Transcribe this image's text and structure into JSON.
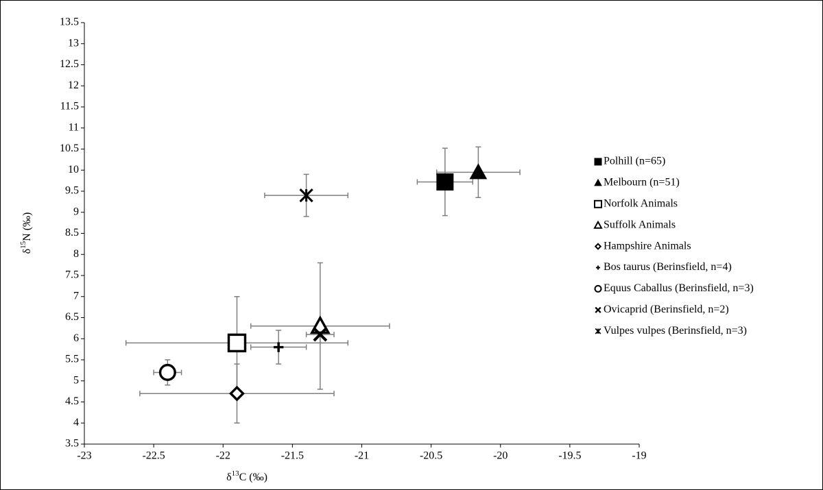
{
  "chart_data": {
    "type": "scatter",
    "xlabel": [
      "δ",
      "13",
      "C (‰)"
    ],
    "ylabel": [
      "δ",
      "15",
      "N (‰)"
    ],
    "xlim": [
      -23,
      -19
    ],
    "xticks": [
      -23,
      -22.5,
      -22,
      -21.5,
      -21,
      -20.5,
      -20,
      -19.5,
      -19
    ],
    "ylim": [
      3.5,
      13.5
    ],
    "yticks": [
      3.5,
      4,
      4.5,
      5,
      5.5,
      6,
      6.5,
      7,
      7.5,
      8,
      8.5,
      9,
      9.5,
      10,
      10.5,
      11,
      11.5,
      12,
      12.5,
      13,
      13.5
    ],
    "grid": false,
    "legend": "right",
    "errorbar_color": "#7f7f7f",
    "series": [
      {
        "name": "Polhill (n=65)",
        "marker": "square-filled",
        "color": "#000000",
        "x": [
          -20.4
        ],
        "values": [
          9.72
        ],
        "xerr": [
          0.2
        ],
        "yerr": [
          0.8
        ]
      },
      {
        "name": "Melbourn (n=51)",
        "marker": "triangle-filled",
        "color": "#000000",
        "x": [
          -20.16
        ],
        "values": [
          9.95
        ],
        "xerr": [
          0.3
        ],
        "yerr": [
          0.6
        ]
      },
      {
        "name": "Norfolk Animals",
        "marker": "square-open",
        "color": "#000000",
        "x": [
          -21.9
        ],
        "values": [
          5.9
        ],
        "xerr": [
          0.8
        ],
        "yerr": [
          1.1
        ]
      },
      {
        "name": "Suffolk Animals",
        "marker": "triangle-open",
        "color": "#000000",
        "x": [
          -21.3
        ],
        "values": [
          6.3
        ],
        "xerr": [
          0.5
        ],
        "yerr": [
          1.5
        ]
      },
      {
        "name": "Hampshire Animals",
        "marker": "diamond-open",
        "color": "#000000",
        "x": [
          -21.9
        ],
        "values": [
          4.7
        ],
        "xerr": [
          0.7
        ],
        "yerr": [
          0.7
        ]
      },
      {
        "name": "Bos taurus (Berinsfield, n=4)",
        "marker": "plus",
        "color": "#000000",
        "x": [
          -21.6
        ],
        "values": [
          5.8
        ],
        "xerr": [
          0.2
        ],
        "yerr": [
          0.4
        ]
      },
      {
        "name": "Equus Caballus (Berinsfield, n=3)",
        "marker": "circle-open",
        "color": "#000000",
        "x": [
          -22.4
        ],
        "values": [
          5.2
        ],
        "xerr": [
          0.1
        ],
        "yerr": [
          0.3
        ]
      },
      {
        "name": "Ovicaprid (Berinsfield, n=2)",
        "marker": "x",
        "color": "#000000",
        "x": [
          -21.3
        ],
        "values": [
          6.1
        ],
        "xerr": [
          0.1
        ],
        "yerr": [
          0.2
        ]
      },
      {
        "name": "Vulpes vulpes (Berinsfield, n=3)",
        "marker": "star",
        "color": "#000000",
        "x": [
          -21.4
        ],
        "values": [
          9.4
        ],
        "xerr": [
          0.3
        ],
        "yerr": [
          0.5
        ]
      }
    ]
  }
}
